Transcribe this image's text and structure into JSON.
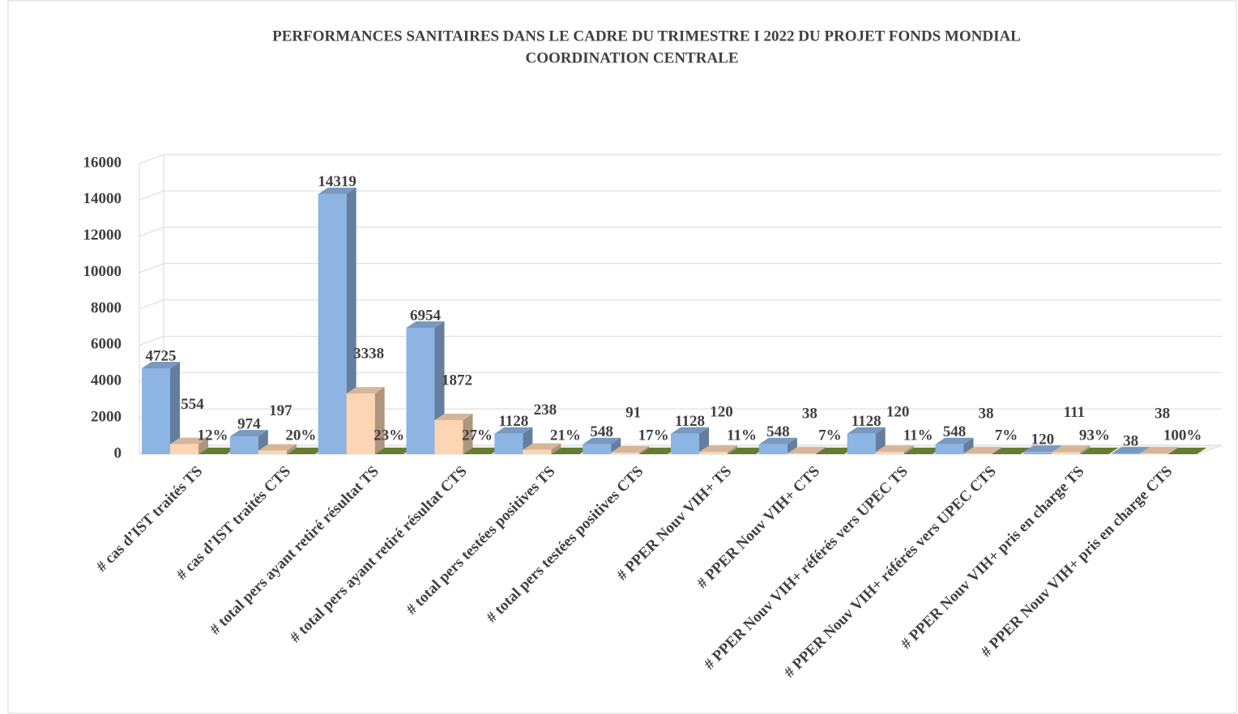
{
  "chart_data": {
    "type": "bar3d",
    "title": [
      "PERFORMANCES SANITAIRES DANS LE CADRE DU TRIMESTRE I 2022 DU PROJET FONDS MONDIAL",
      "COORDINATION CENTRALE"
    ],
    "categories": [
      "# cas d’IST traités TS",
      "# cas d’IST traités CTS",
      "# total pers ayant retiré résultat TS",
      "# total pers ayant retiré résultat CTS",
      "# total pers testées positives TS",
      "# total pers testées positives CTS",
      "# PPER Nouv VIH+ TS",
      "# PPER Nouv VIH+ CTS",
      "# PPER Nouv VIH+ référés vers UPEC TS",
      "# PPER Nouv VIH+ référés vers UPEC CTS",
      "# PPER Nouv VIH+ pris en charge TS",
      "# PPER Nouv VIH+ pris en charge CTS"
    ],
    "series": [
      {
        "color": "#8db4e2",
        "values": [
          4725,
          974,
          14319,
          6954,
          1128,
          548,
          1128,
          548,
          1128,
          548,
          120,
          38
        ]
      },
      {
        "color": "#fcd5b4",
        "values": [
          554,
          197,
          3338,
          1872,
          238,
          91,
          120,
          38,
          120,
          38,
          111,
          38
        ]
      },
      {
        "color": "#77933c",
        "values": [
          0.12,
          0.2,
          0.23,
          0.27,
          0.21,
          0.17,
          0.11,
          0.07,
          0.11,
          0.07,
          0.93,
          1
        ],
        "value_labels": [
          "12%",
          "20%",
          "23%",
          "27%",
          "21%",
          "17%",
          "11%",
          "7%",
          "11%",
          "7%",
          "93%",
          "100%"
        ]
      }
    ],
    "ylim": [
      0,
      16000
    ],
    "yticks": [
      0,
      2000,
      4000,
      6000,
      8000,
      10000,
      12000,
      14000,
      16000
    ],
    "grid": true
  }
}
